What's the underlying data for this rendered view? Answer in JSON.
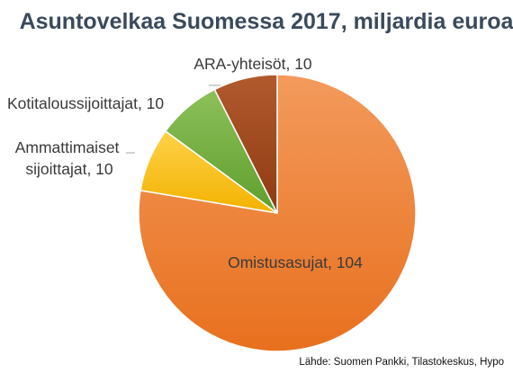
{
  "chart_data": {
    "type": "pie",
    "title": "Asuntovelkaa Suomessa 2017, miljardia euroa",
    "slices": [
      {
        "name": "Omistusasujat",
        "value": 104,
        "label": "Omistusasujat, 104",
        "color_top": "#f39a5c",
        "color_bottom": "#e8701e"
      },
      {
        "name": "Ammattimaiset sijoittajat",
        "value": 10,
        "label_lines": [
          "Ammattimaiset",
          "sijoittajat, 10"
        ],
        "color_top": "#ffd24a",
        "color_bottom": "#f2b200"
      },
      {
        "name": "Kotitaloussijoittajat",
        "value": 10,
        "label": "Kotitaloussijoittajat, 10",
        "color_top": "#8dc05a",
        "color_bottom": "#5f9e2e"
      },
      {
        "name": "ARA-yhteisöt",
        "value": 10,
        "label": "ARA-yhteisöt, 10",
        "color_top": "#b25a2e",
        "color_bottom": "#8e3a12"
      }
    ],
    "legend": "none"
  },
  "source": "Lähde: Suomen Pankki, Tilastokeskus, Hypo"
}
